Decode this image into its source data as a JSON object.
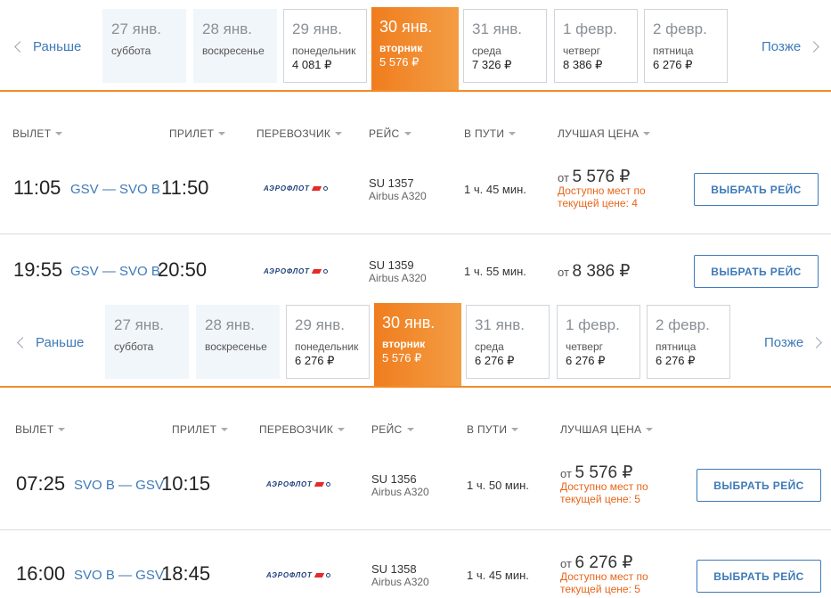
{
  "colors": {
    "accent": "#f28c28",
    "link": "#3d7ab8",
    "availability": "#e8651a",
    "past_bg": "#f1f6fb"
  },
  "icons": {
    "prev": "chevron-left-icon",
    "next": "chevron-right-icon",
    "sort": "caret-down-icon"
  },
  "sections": [
    {
      "nav": {
        "prev": "Раньше",
        "next": "Позже"
      },
      "days": [
        {
          "date": "27 янв.",
          "weekday": "суббота",
          "price": "",
          "state": "past"
        },
        {
          "date": "28 янв.",
          "weekday": "воскресенье",
          "price": "",
          "state": "past"
        },
        {
          "date": "29 янв.",
          "weekday": "понедельник",
          "price": "4 081 ₽",
          "state": "future"
        },
        {
          "date": "30 янв.",
          "weekday": "вторник",
          "price": "5 576 ₽",
          "state": "active"
        },
        {
          "date": "31 янв.",
          "weekday": "среда",
          "price": "7 326 ₽",
          "state": "future"
        },
        {
          "date": "1 февр.",
          "weekday": "четверг",
          "price": "8 386 ₽",
          "state": "future"
        },
        {
          "date": "2 февр.",
          "weekday": "пятница",
          "price": "6 276 ₽",
          "state": "future"
        }
      ],
      "columns": {
        "depart": "ВЫЛЕТ",
        "arrive": "ПРИЛЕТ",
        "carrier": "ПЕРЕВОЗЧИК",
        "flight": "РЕЙС",
        "duration": "В ПУТИ",
        "price": "ЛУЧШАЯ ЦЕНА"
      },
      "flights": [
        {
          "depart": "11:05",
          "route": "GSV — SVO B",
          "arrive": "11:50",
          "carrier": "АЭРОФЛОТ",
          "flight_no": "SU 1357",
          "aircraft": "Airbus A320",
          "duration": "1 ч. 45 мин.",
          "price_prefix": "от",
          "price": "5 576 ₽",
          "availability": [
            "Доступно мест по",
            "текущей цене: 4"
          ],
          "button": "ВЫБРАТЬ РЕЙС"
        },
        {
          "depart": "19:55",
          "route": "GSV — SVO B",
          "arrive": "20:50",
          "carrier": "АЭРОФЛОТ",
          "flight_no": "SU 1359",
          "aircraft": "Airbus A320",
          "duration": "1 ч. 55 мин.",
          "price_prefix": "от",
          "price": "8 386 ₽",
          "availability": [],
          "button": "ВЫБРАТЬ РЕЙС"
        }
      ]
    },
    {
      "nav": {
        "prev": "Раньше",
        "next": "Позже"
      },
      "days": [
        {
          "date": "27 янв.",
          "weekday": "суббота",
          "price": "",
          "state": "past"
        },
        {
          "date": "28 янв.",
          "weekday": "воскресенье",
          "price": "",
          "state": "past"
        },
        {
          "date": "29 янв.",
          "weekday": "понедельник",
          "price": "6 276 ₽",
          "state": "future"
        },
        {
          "date": "30 янв.",
          "weekday": "вторник",
          "price": "5 576 ₽",
          "state": "active"
        },
        {
          "date": "31 янв.",
          "weekday": "среда",
          "price": "6 276 ₽",
          "state": "future"
        },
        {
          "date": "1 февр.",
          "weekday": "четверг",
          "price": "6 276 ₽",
          "state": "future"
        },
        {
          "date": "2 февр.",
          "weekday": "пятница",
          "price": "6 276 ₽",
          "state": "future"
        }
      ],
      "columns": {
        "depart": "ВЫЛЕТ",
        "arrive": "ПРИЛЕТ",
        "carrier": "ПЕРЕВОЗЧИК",
        "flight": "РЕЙС",
        "duration": "В ПУТИ",
        "price": "ЛУЧШАЯ ЦЕНА"
      },
      "flights": [
        {
          "depart": "07:25",
          "route": "SVO B — GSV",
          "arrive": "10:15",
          "carrier": "АЭРОФЛОТ",
          "flight_no": "SU 1356",
          "aircraft": "Airbus A320",
          "duration": "1 ч. 50 мин.",
          "price_prefix": "от",
          "price": "5 576 ₽",
          "availability": [
            "Доступно мест по",
            "текущей цене: 5"
          ],
          "button": "ВЫБРАТЬ РЕЙС"
        },
        {
          "depart": "16:00",
          "route": "SVO B — GSV",
          "arrive": "18:45",
          "carrier": "АЭРОФЛОТ",
          "flight_no": "SU 1358",
          "aircraft": "Airbus A320",
          "duration": "1 ч. 45 мин.",
          "price_prefix": "от",
          "price": "6 276 ₽",
          "availability": [
            "Доступно мест по",
            "текущей цене: 5"
          ],
          "button": "ВЫБРАТЬ РЕЙС"
        }
      ]
    }
  ]
}
